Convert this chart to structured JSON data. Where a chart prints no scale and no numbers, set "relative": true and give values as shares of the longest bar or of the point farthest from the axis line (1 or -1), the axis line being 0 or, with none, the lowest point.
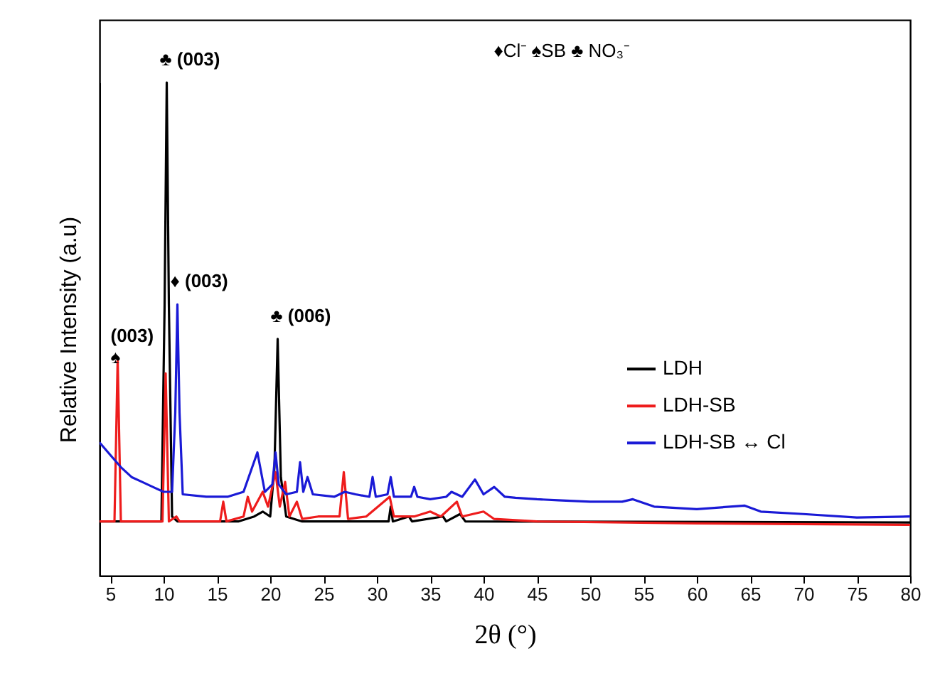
{
  "chart_data": {
    "type": "line",
    "relative": true,
    "xlabel": "2θ (°)",
    "ylabel": "Relative Intensity (a.u)",
    "xlim": [
      4,
      80
    ],
    "xticks": [
      5,
      10,
      15,
      20,
      25,
      30,
      35,
      40,
      45,
      50,
      55,
      60,
      65,
      70,
      75,
      80
    ],
    "legend": "right",
    "grid": false,
    "series": [
      {
        "name": "LDH",
        "color": "#000000",
        "x": [
          4,
          5,
          8,
          9.8,
          10.1,
          10.3,
          10.5,
          10.8,
          11.3,
          17,
          18.5,
          19.3,
          20,
          20.4,
          20.7,
          21,
          21.5,
          23,
          31.1,
          31.3,
          31.5,
          33,
          33.3,
          36.2,
          36.5,
          37.8,
          38.3,
          80
        ],
        "values": [
          0.11,
          0.11,
          0.11,
          0.11,
          0.55,
          1,
          0.55,
          0.12,
          0.11,
          0.11,
          0.12,
          0.13,
          0.12,
          0.22,
          0.48,
          0.2,
          0.12,
          0.11,
          0.11,
          0.14,
          0.11,
          0.12,
          0.11,
          0.12,
          0.11,
          0.125,
          0.11,
          0.108
        ]
      },
      {
        "name": "LDH-SB",
        "color": "#ee1c1c",
        "x": [
          4,
          5.4,
          5.7,
          6,
          9.9,
          10.2,
          10.5,
          11.2,
          11.5,
          15.3,
          15.6,
          15.9,
          17.5,
          17.9,
          18.3,
          19.3,
          19.8,
          20.5,
          20.9,
          21.4,
          21.8,
          22.5,
          23,
          24.5,
          26.5,
          26.9,
          27.3,
          29,
          31.2,
          31.6,
          33.5,
          35,
          36,
          37.5,
          38,
          40,
          41,
          45,
          60,
          80
        ],
        "values": [
          0.11,
          0.11,
          0.44,
          0.11,
          0.11,
          0.41,
          0.11,
          0.12,
          0.11,
          0.11,
          0.15,
          0.11,
          0.12,
          0.16,
          0.13,
          0.17,
          0.14,
          0.21,
          0.14,
          0.19,
          0.12,
          0.15,
          0.115,
          0.12,
          0.12,
          0.21,
          0.115,
          0.12,
          0.16,
          0.12,
          0.12,
          0.13,
          0.12,
          0.15,
          0.12,
          0.13,
          0.115,
          0.11,
          0.106,
          0.103
        ]
      },
      {
        "name": "LDH-SB ↔ Cl",
        "color": "#1a1ad6",
        "x": [
          4,
          5,
          6,
          7,
          8,
          9,
          10,
          10.8,
          11.1,
          11.3,
          11.5,
          11.8,
          14,
          16,
          17.5,
          18.8,
          19.5,
          20.2,
          20.5,
          20.8,
          21.5,
          22.5,
          22.8,
          23.1,
          23.5,
          24,
          26,
          27,
          28,
          29.3,
          29.6,
          29.9,
          31,
          31.3,
          31.6,
          33.2,
          33.5,
          33.8,
          35,
          36.5,
          37,
          38,
          39.2,
          40,
          41,
          42,
          43,
          45,
          47,
          50,
          53,
          54,
          56,
          60,
          64.5,
          66,
          70,
          75,
          80
        ],
        "values": [
          0.27,
          0.245,
          0.22,
          0.2,
          0.19,
          0.18,
          0.17,
          0.17,
          0.33,
          0.55,
          0.33,
          0.165,
          0.16,
          0.16,
          0.17,
          0.25,
          0.17,
          0.185,
          0.25,
          0.185,
          0.165,
          0.17,
          0.23,
          0.17,
          0.2,
          0.165,
          0.16,
          0.17,
          0.165,
          0.16,
          0.2,
          0.16,
          0.165,
          0.2,
          0.16,
          0.16,
          0.18,
          0.16,
          0.155,
          0.16,
          0.17,
          0.16,
          0.195,
          0.165,
          0.18,
          0.16,
          0.158,
          0.155,
          0.153,
          0.15,
          0.15,
          0.155,
          0.14,
          0.135,
          0.142,
          0.13,
          0.125,
          0.118,
          0.12
        ]
      }
    ],
    "annotations": [
      {
        "text": "♣ (003)",
        "x": 10.3,
        "y": 1
      },
      {
        "text": "♦ (003)",
        "x": 11.3,
        "y": 0.55
      },
      {
        "text": "(003)\n♠",
        "x": 5.7,
        "y": 0.44
      },
      {
        "text": "♣ (006)",
        "x": 20.7,
        "y": 0.48
      },
      "♦Cl⁻    ♠SB    ♣ NO₃⁻"
    ]
  }
}
